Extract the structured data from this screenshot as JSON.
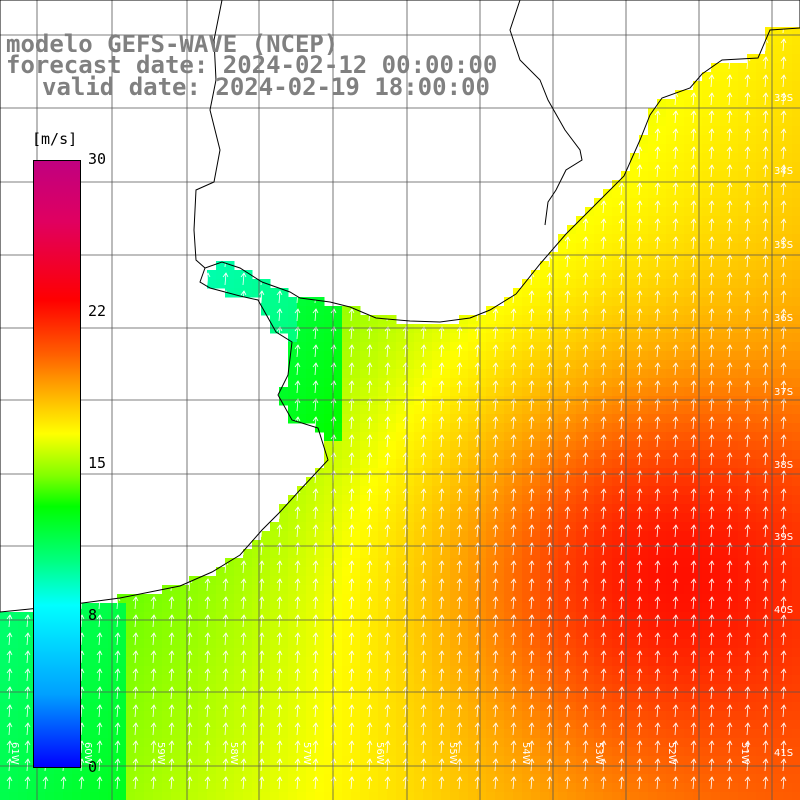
{
  "title": {
    "line1": "modelo GEFS-WAVE (NCEP)",
    "line2": "forecast date: 2024-02-12 00:00:00",
    "line3": "valid date: 2024-02-19 18:00:00"
  },
  "colorbar": {
    "unit": "[m/s]",
    "ticks": [
      "30",
      "22",
      "15",
      "8",
      "0"
    ],
    "colors": [
      "#0000ff",
      "#00ffff",
      "#00ff00",
      "#ffff00",
      "#ff6000",
      "#ff0000",
      "#c00080"
    ]
  },
  "lat_labels": [
    "33S",
    "34S",
    "35S",
    "36S",
    "37S",
    "38S",
    "39S",
    "40S",
    "41S"
  ],
  "lon_labels": [
    "61W",
    "60W",
    "59W",
    "58W",
    "57W",
    "56W",
    "55W",
    "54W",
    "53W",
    "52W",
    "51W"
  ],
  "field": {
    "description_units": "m/s",
    "land_color": "#ffffff",
    "arrow_color": "#ffffff"
  }
}
